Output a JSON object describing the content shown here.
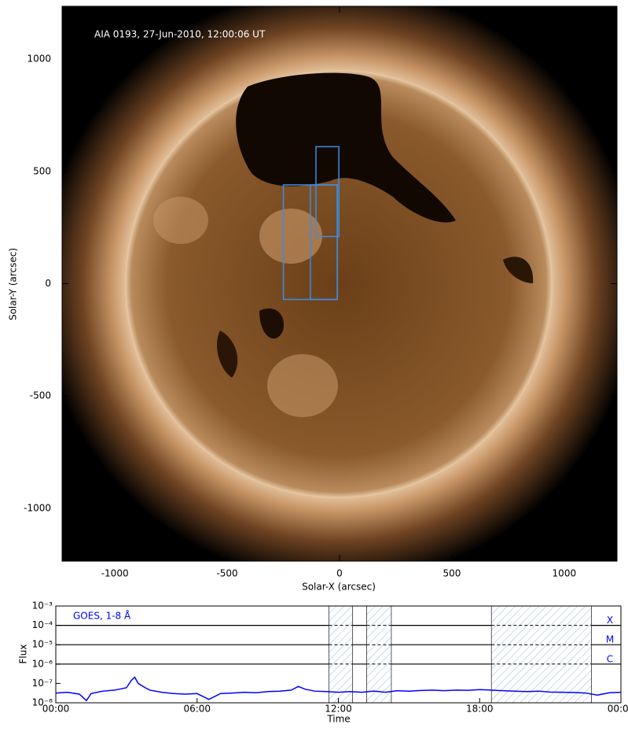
{
  "chart_data": [
    {
      "type": "image",
      "annotation": "AIA 0193, 27-Jun-2010, 12:00:06 UT",
      "xlabel": "Solar-X (arcsec)",
      "ylabel": "Solar-Y (arcsec)",
      "xlim": [
        -1235,
        1235
      ],
      "ylim": [
        -1235,
        1235
      ],
      "xticks": [
        -1000,
        -500,
        0,
        500,
        1000
      ],
      "yticks": [
        -1000,
        -500,
        0,
        500,
        1000
      ],
      "boxes": [
        {
          "x": [
            -250,
            -10
          ],
          "y": [
            -70,
            440
          ]
        },
        {
          "x": [
            -130,
            -10
          ],
          "y": [
            -70,
            440
          ]
        },
        {
          "x": [
            -105,
            -3
          ],
          "y": [
            210,
            610
          ]
        }
      ],
      "box_color": "#3a8ee6"
    },
    {
      "type": "line",
      "annotation": "GOES, 1-8 Å",
      "ylabel": "Flux",
      "xlabel": "Time",
      "log_y": true,
      "xlim": [
        0,
        24
      ],
      "xticks": [
        {
          "value": 0,
          "label": "00:00"
        },
        {
          "value": 6,
          "label": "06:00"
        },
        {
          "value": 12,
          "label": "12:00"
        },
        {
          "value": 18,
          "label": "18:00"
        },
        {
          "value": 24,
          "label": "00:00"
        }
      ],
      "ylim": [
        1e-08,
        0.001
      ],
      "yticks": [
        {
          "value": 1e-08,
          "label": "10⁻⁸"
        },
        {
          "value": 1e-07,
          "label": "10⁻⁷"
        },
        {
          "value": 1e-06,
          "label": "10⁻⁶"
        },
        {
          "value": 1e-05,
          "label": "10⁻⁵"
        },
        {
          "value": 0.0001,
          "label": "10⁻⁴"
        },
        {
          "value": 0.001,
          "label": "10⁻³"
        }
      ],
      "levels": [
        {
          "value": 0.0001,
          "label": "X"
        },
        {
          "value": 1e-05,
          "label": "M"
        },
        {
          "value": 1e-06,
          "label": "C"
        }
      ],
      "highlight_spans": [
        [
          11.6,
          12.6
        ],
        [
          13.2,
          14.25
        ],
        [
          18.5,
          22.75
        ]
      ],
      "x": [
        0,
        0.5,
        1,
        1.3,
        1.5,
        2,
        2.5,
        3,
        3.2,
        3.35,
        3.5,
        3.8,
        4,
        4.5,
        5,
        5.5,
        6,
        6.5,
        7,
        7.5,
        8,
        8.5,
        9,
        9.5,
        10,
        10.3,
        10.6,
        11,
        11.5,
        12,
        12.5,
        13,
        13.5,
        14,
        14.5,
        15,
        15.5,
        16,
        16.5,
        17,
        17.5,
        18,
        18.5,
        19,
        19.5,
        20,
        20.5,
        21,
        21.5,
        22,
        22.5,
        23,
        23.5,
        24
      ],
      "series": [
        {
          "color": "#0000ff",
          "values": [
            3.2e-08,
            3.5e-08,
            2.8e-08,
            1.3e-08,
            3e-08,
            4e-08,
            4.5e-08,
            6e-08,
            1.4e-07,
            2.1e-07,
            1e-07,
            6e-08,
            4.5e-08,
            3.5e-08,
            3e-08,
            2.8e-08,
            3e-08,
            1.5e-08,
            3e-08,
            3.2e-08,
            3.5e-08,
            3.3e-08,
            3.8e-08,
            4e-08,
            4.5e-08,
            7e-08,
            5e-08,
            4e-08,
            3.8e-08,
            3.5e-08,
            3.8e-08,
            3.5e-08,
            4e-08,
            3.5e-08,
            4.2e-08,
            4e-08,
            4.3e-08,
            4.5e-08,
            4.2e-08,
            4.5e-08,
            4.4e-08,
            4.8e-08,
            4.5e-08,
            4.2e-08,
            4e-08,
            3.8e-08,
            4e-08,
            3.6e-08,
            3.5e-08,
            3.4e-08,
            3.2e-08,
            2.5e-08,
            3.3e-08,
            3.5e-08
          ]
        }
      ]
    }
  ]
}
